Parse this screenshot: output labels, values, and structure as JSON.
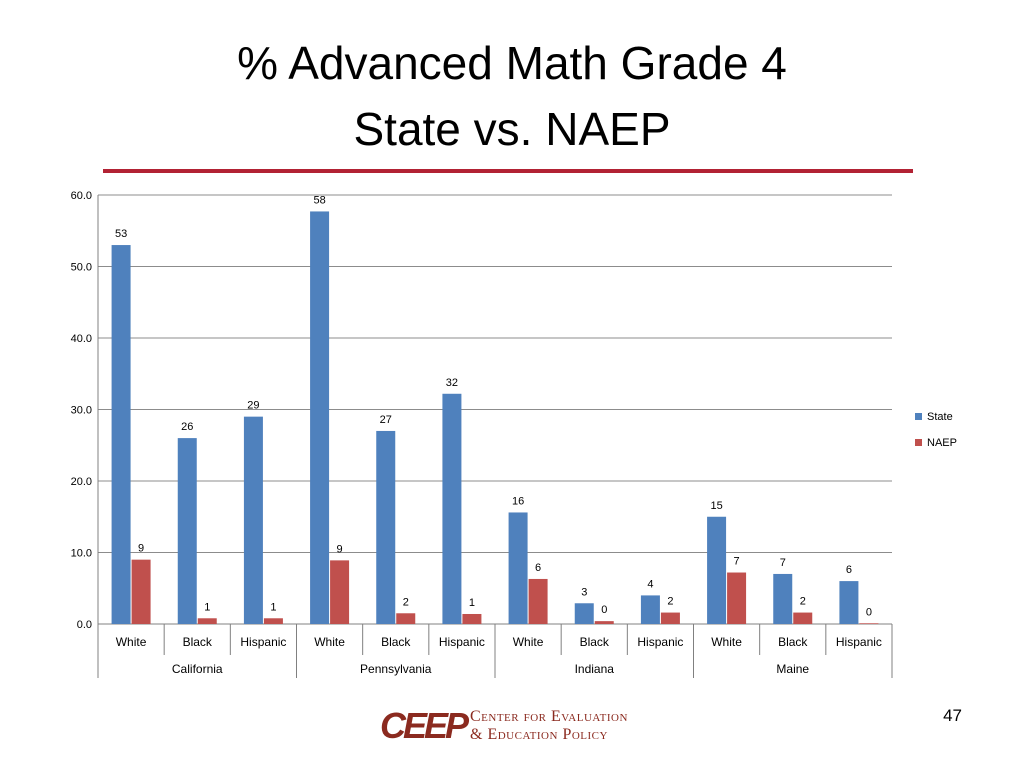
{
  "slide": {
    "title_line1": "% Advanced Math Grade 4",
    "title_line2": "State vs. NAEP",
    "page_number": "47",
    "accent_color": "#b22234"
  },
  "logo": {
    "mark": "CEEP",
    "line1": "Center for Evaluation",
    "line2": "& Education Policy",
    "color": "#8b2a1f"
  },
  "chart_data": {
    "type": "bar",
    "groups": [
      {
        "name": "California",
        "categories": [
          "White",
          "Black",
          "Hispanic"
        ]
      },
      {
        "name": "Pennsylvania",
        "categories": [
          "White",
          "Black",
          "Hispanic"
        ]
      },
      {
        "name": "Indiana",
        "categories": [
          "White",
          "Black",
          "Hispanic"
        ]
      },
      {
        "name": "Maine",
        "categories": [
          "White",
          "Black",
          "Hispanic"
        ]
      }
    ],
    "categories": [
      "White",
      "Black",
      "Hispanic",
      "White",
      "Black",
      "Hispanic",
      "White",
      "Black",
      "Hispanic",
      "White",
      "Black",
      "Hispanic"
    ],
    "series": [
      {
        "name": "State",
        "color": "#4f81bd",
        "values": [
          53.0,
          26.0,
          29.0,
          57.7,
          27.0,
          32.2,
          15.6,
          2.9,
          4.0,
          15.0,
          7.0,
          6.0
        ],
        "labels": [
          "53",
          "26",
          "29",
          "58",
          "27",
          "32",
          "16",
          "3",
          "4",
          "15",
          "7",
          "6"
        ]
      },
      {
        "name": "NAEP",
        "color": "#c0504d",
        "values": [
          9.0,
          0.8,
          0.8,
          8.9,
          1.5,
          1.4,
          6.3,
          0.4,
          1.6,
          7.2,
          1.6,
          0.1
        ],
        "labels": [
          "9",
          "1",
          "1",
          "9",
          "2",
          "1",
          "6",
          "0",
          "2",
          "7",
          "2",
          "0"
        ]
      }
    ],
    "ylim": [
      0,
      60
    ],
    "yticks": [
      "0.0",
      "10.0",
      "20.0",
      "30.0",
      "40.0",
      "50.0",
      "60.0"
    ],
    "grid": true,
    "legend_position": "right"
  }
}
